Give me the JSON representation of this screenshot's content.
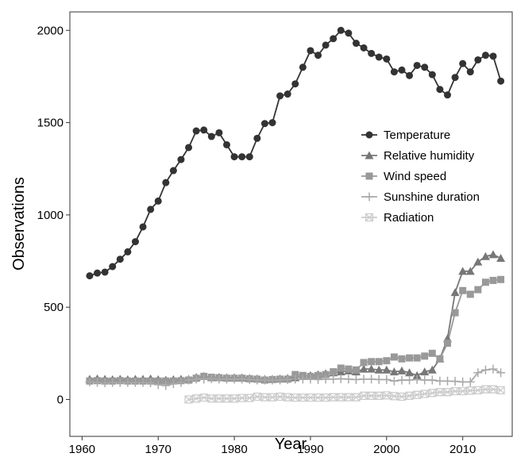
{
  "chart_data": {
    "type": "line",
    "x_label": "Year",
    "y_label": "Observations",
    "x": [
      1961,
      1962,
      1963,
      1964,
      1965,
      1966,
      1967,
      1968,
      1969,
      1970,
      1971,
      1972,
      1973,
      1974,
      1975,
      1976,
      1977,
      1978,
      1979,
      1980,
      1981,
      1982,
      1983,
      1984,
      1985,
      1986,
      1987,
      1988,
      1989,
      1990,
      1991,
      1992,
      1993,
      1994,
      1995,
      1996,
      1997,
      1998,
      1999,
      2000,
      2001,
      2002,
      2003,
      2004,
      2005,
      2006,
      2007,
      2008,
      2009,
      2010,
      2011,
      2012,
      2013,
      2014,
      2015
    ],
    "xlim": [
      1958.4,
      2016.5
    ],
    "xticks": [
      1960,
      1970,
      1980,
      1990,
      2000,
      2010
    ],
    "ylim": [
      -200,
      2100
    ],
    "yticks": [
      0,
      500,
      1000,
      1500,
      2000
    ],
    "grid": false,
    "legend": "right",
    "series": [
      {
        "name": "Temperature",
        "color": "#333333",
        "marker": "circle",
        "values": [
          670,
          685,
          690,
          720,
          760,
          800,
          855,
          935,
          1030,
          1075,
          1175,
          1240,
          1300,
          1365,
          1455,
          1460,
          1425,
          1445,
          1380,
          1315,
          1315,
          1315,
          1415,
          1495,
          1500,
          1645,
          1655,
          1710,
          1800,
          1890,
          1865,
          1920,
          1955,
          2000,
          1985,
          1930,
          1905,
          1875,
          1855,
          1845,
          1775,
          1785,
          1755,
          1810,
          1800,
          1760,
          1680,
          1650,
          1745,
          1820,
          1775,
          1840,
          1865,
          1860,
          1725
        ]
      },
      {
        "name": "Relative humidity",
        "color": "#777777",
        "marker": "triangle",
        "values": [
          110,
          112,
          110,
          108,
          110,
          108,
          110,
          110,
          112,
          108,
          105,
          108,
          110,
          110,
          120,
          125,
          118,
          120,
          118,
          118,
          118,
          115,
          112,
          110,
          110,
          112,
          115,
          118,
          125,
          130,
          135,
          140,
          145,
          150,
          155,
          150,
          165,
          165,
          160,
          160,
          150,
          155,
          145,
          130,
          150,
          160,
          220,
          330,
          580,
          695,
          695,
          745,
          775,
          785,
          765
        ]
      },
      {
        "name": "Wind speed",
        "color": "#999999",
        "marker": "square",
        "values": [
          100,
          102,
          100,
          100,
          102,
          100,
          100,
          100,
          100,
          100,
          100,
          100,
          102,
          105,
          115,
          125,
          120,
          118,
          115,
          115,
          115,
          112,
          110,
          105,
          108,
          110,
          110,
          135,
          130,
          125,
          130,
          135,
          150,
          170,
          165,
          160,
          200,
          205,
          205,
          210,
          230,
          220,
          225,
          225,
          235,
          250,
          220,
          305,
          470,
          590,
          570,
          595,
          635,
          645,
          650
        ]
      },
      {
        "name": "Sunshine duration",
        "color": "#aaaaaa",
        "marker": "plus",
        "values": [
          95,
          92,
          90,
          92,
          92,
          92,
          92,
          92,
          90,
          80,
          75,
          85,
          92,
          105,
          110,
          110,
          112,
          110,
          110,
          110,
          110,
          108,
          105,
          105,
          105,
          105,
          108,
          110,
          110,
          110,
          108,
          110,
          110,
          112,
          110,
          108,
          110,
          110,
          108,
          108,
          100,
          105,
          105,
          108,
          105,
          105,
          100,
          100,
          98,
          95,
          95,
          145,
          160,
          165,
          145
        ]
      },
      {
        "name": "Radiation",
        "color": "#cccccc",
        "marker": "boxx",
        "values": [
          null,
          null,
          null,
          null,
          null,
          null,
          null,
          null,
          null,
          null,
          null,
          null,
          null,
          0,
          5,
          10,
          5,
          5,
          5,
          5,
          8,
          8,
          15,
          12,
          12,
          15,
          12,
          10,
          10,
          10,
          10,
          10,
          12,
          12,
          12,
          12,
          20,
          20,
          20,
          22,
          18,
          15,
          20,
          25,
          30,
          35,
          40,
          40,
          45,
          45,
          48,
          50,
          55,
          55,
          50
        ]
      }
    ]
  }
}
